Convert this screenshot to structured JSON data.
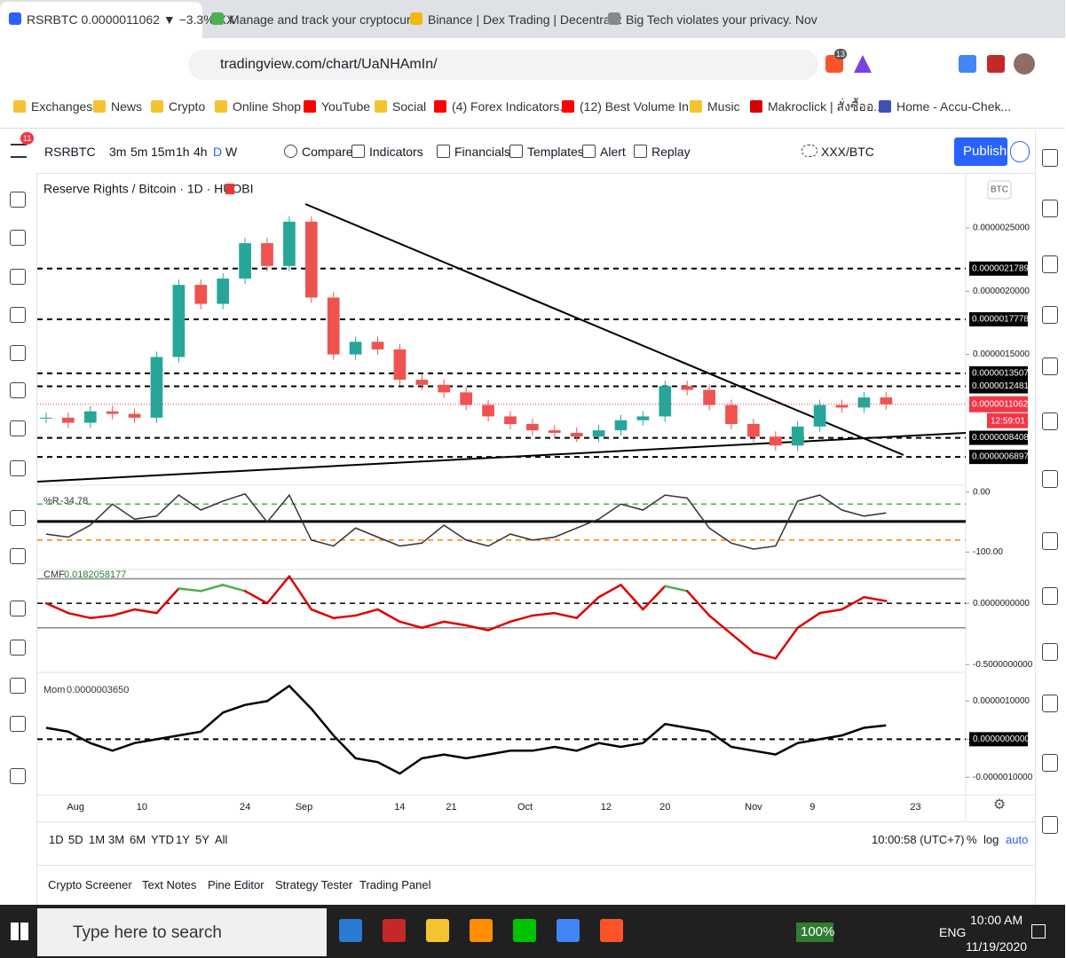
{
  "ui": {
    "tabs": [
      "RSRBTC 0.0000011062 ▼ −3.3% XX",
      "Manage and track your cryptocurr",
      "Binance | Dex Trading | Decentraliz",
      "Big Tech violates your privacy. Nov"
    ],
    "url": "tradingview.com/chart/UaNHAmIn/",
    "extension_badge": "13",
    "bookmarks": [
      "Exchanges",
      "News",
      "Crypto",
      "Online Shop",
      "YouTube",
      "Social",
      "(4) Forex Indicators...",
      "(12) Best Volume In...",
      "Music",
      "Makroclick | สั่งซื้ออ...",
      "Home - Accu-Chek..."
    ],
    "menu_badge": "11",
    "symbol": "RSRBTC",
    "intervals": [
      "3m",
      "5m",
      "15m",
      "1h",
      "4h",
      "D",
      "W"
    ],
    "buttons": [
      "Compare",
      "Indicators",
      "Financials",
      "Templates",
      "Alert",
      "Replay"
    ],
    "layout_name": "XXX/BTC",
    "publish": "Publish",
    "ranges": [
      "1D",
      "5D",
      "1M",
      "3M",
      "6M",
      "YTD",
      "1Y",
      "5Y",
      "All"
    ],
    "clock": "10:00:58 (UTC+7)",
    "scale_options": [
      "%",
      "log",
      "auto"
    ],
    "panels": [
      "Crypto Screener",
      "Text Notes",
      "Pine Editor",
      "Strategy Tester",
      "Trading Panel"
    ],
    "taskbar": {
      "search": "Type here to search",
      "battery": "100%",
      "language": "ENG",
      "time": "10:00 AM",
      "date": "11/19/2020"
    }
  },
  "chart_data": {
    "type": "candlestick",
    "title": "Reserve Rights / Bitcoin · 1D · HUOBI",
    "currency": "BTC",
    "xlim": [
      -5.2,
      120.8
    ],
    "xticks": [
      {
        "value": 0,
        "label": "Aug"
      },
      {
        "value": 9,
        "label": "10"
      },
      {
        "value": 23,
        "label": "24"
      },
      {
        "value": 31,
        "label": "Sep"
      },
      {
        "value": 44,
        "label": "14"
      },
      {
        "value": 51,
        "label": "21"
      },
      {
        "value": 61,
        "label": "Oct"
      },
      {
        "value": 72,
        "label": "12"
      },
      {
        "value": 80,
        "label": "20"
      },
      {
        "value": 92,
        "label": "Nov"
      },
      {
        "value": 100,
        "label": "9"
      },
      {
        "value": 114,
        "label": "23"
      }
    ],
    "x": [
      -4,
      -1,
      2,
      5,
      8,
      11,
      14,
      17,
      20,
      23,
      26,
      29,
      32,
      35,
      38,
      41,
      44,
      47,
      50,
      53,
      56,
      59,
      62,
      65,
      68,
      71,
      74,
      77,
      80,
      83,
      86,
      89,
      92,
      95,
      98,
      101,
      104,
      107,
      110
    ],
    "close": [
      1e-06,
      9.6e-07,
      1.05e-06,
      1.03e-06,
      1e-06,
      1.48e-06,
      2.05e-06,
      1.9e-06,
      2.1e-06,
      2.38e-06,
      2.2e-06,
      2.55e-06,
      1.95e-06,
      1.5e-06,
      1.6e-06,
      1.54e-06,
      1.3e-06,
      1.26e-06,
      1.2e-06,
      1.1e-06,
      1.01e-06,
      9.5e-07,
      9e-07,
      8.8e-07,
      8.5e-07,
      9e-07,
      9.8e-07,
      1.01e-06,
      1.25e-06,
      1.22e-06,
      1.1e-06,
      9.5e-07,
      8.5e-07,
      7.8e-07,
      9.3e-07,
      1.1e-06,
      1.08e-06,
      1.16e-06,
      1.1062e-06
    ],
    "up_color": "#26a69a",
    "down_color": "#ef5350",
    "last_color": "#f23645",
    "countdown": "12:59:01",
    "ylim": [
      4.8e-07,
      2.9e-06
    ],
    "yticks": [
      {
        "value": 2.5e-06,
        "label": "0.0000025000"
      },
      {
        "value": 2e-06,
        "label": "0.0000020000"
      },
      {
        "value": 1.5e-06,
        "label": "0.0000015000"
      }
    ],
    "price_lines": [
      {
        "value": 2.1789e-06,
        "label": "0.0000021789"
      },
      {
        "value": 1.7778e-06,
        "label": "0.0000017778"
      },
      {
        "value": 1.3507e-06,
        "label": "0.0000013507"
      },
      {
        "value": 1.2481e-06,
        "label": "0.0000012481"
      },
      {
        "value": 8.408e-07,
        "label": "0.0000008408"
      },
      {
        "value": 6.897e-07,
        "label": "0.0000006897"
      }
    ],
    "indicators": [
      {
        "name": "%R",
        "last_label": "-34.78",
        "color": "#333333",
        "ylim": [
          -126,
          7
        ],
        "yticks": [
          {
            "value": 0,
            "label": "0.00"
          },
          {
            "value": -100,
            "label": "-100.00"
          }
        ],
        "levels": [
          {
            "value": -20,
            "color": "#4caf50"
          },
          {
            "value": -80,
            "color": "#ff7f00"
          },
          {
            "value": -49,
            "color": "#000000"
          }
        ],
        "values": [
          -70,
          -75,
          -55,
          -20,
          -45,
          -40,
          -5,
          -30,
          -15,
          -3,
          -50,
          -5,
          -80,
          -90,
          -60,
          -75,
          -90,
          -85,
          -55,
          -80,
          -90,
          -70,
          -80,
          -75,
          -60,
          -45,
          -20,
          -30,
          -5,
          -10,
          -60,
          -85,
          -95,
          -90,
          -15,
          -5,
          -30,
          -40,
          -34.78
        ]
      },
      {
        "name": "CMF",
        "last_label": "0.0182058177",
        "color": "#e00000",
        "high_color": "#4caf50",
        "high_above": 0.05,
        "ylim": [
          -0.549,
          0.254
        ],
        "yticks": [
          {
            "value": 0,
            "label": "0.0000000000"
          },
          {
            "value": -0.5,
            "label": "-0.5000000000"
          }
        ],
        "levels": [
          {
            "value": 0.2,
            "color": "#888888"
          },
          {
            "value": 0,
            "color": "#000000"
          },
          {
            "value": -0.2,
            "color": "#888888"
          }
        ],
        "values": [
          0.0,
          -0.08,
          -0.12,
          -0.1,
          -0.05,
          -0.08,
          0.12,
          0.1,
          0.15,
          0.1,
          0.0,
          0.22,
          -0.05,
          -0.12,
          -0.1,
          -0.05,
          -0.15,
          -0.2,
          -0.15,
          -0.18,
          -0.22,
          -0.15,
          -0.1,
          -0.08,
          -0.12,
          0.05,
          0.15,
          -0.05,
          0.14,
          0.1,
          -0.1,
          -0.25,
          -0.4,
          -0.45,
          -0.2,
          -0.08,
          -0.05,
          0.05,
          0.0182058177
        ]
      },
      {
        "name": "Mom",
        "last_label": "0.0000003650",
        "color": "#000000",
        "ylim": [
          -1.41e-06,
          1.66e-06
        ],
        "yticks": [
          {
            "value": 1e-06,
            "label": "0.0000010000"
          },
          {
            "value": 0,
            "label": "0.0000000000"
          },
          {
            "value": -1e-06,
            "label": "-0.0000010000"
          }
        ],
        "levels": [
          {
            "value": 0,
            "color": "#000000"
          }
        ],
        "values": [
          3e-07,
          2e-07,
          -1e-07,
          -3e-07,
          -1e-07,
          0.0,
          1e-07,
          2e-07,
          7e-07,
          9e-07,
          1e-06,
          1.4e-06,
          8e-07,
          1e-07,
          -5e-07,
          -6e-07,
          -9e-07,
          -5e-07,
          -4e-07,
          -5e-07,
          -4e-07,
          -3e-07,
          -3e-07,
          -2e-07,
          -3e-07,
          -1e-07,
          -2e-07,
          -1e-07,
          4e-07,
          3e-07,
          2e-07,
          -2e-07,
          -3e-07,
          -4e-07,
          -1e-07,
          0.0,
          1e-07,
          3e-07,
          3.65e-07
        ]
      }
    ]
  }
}
